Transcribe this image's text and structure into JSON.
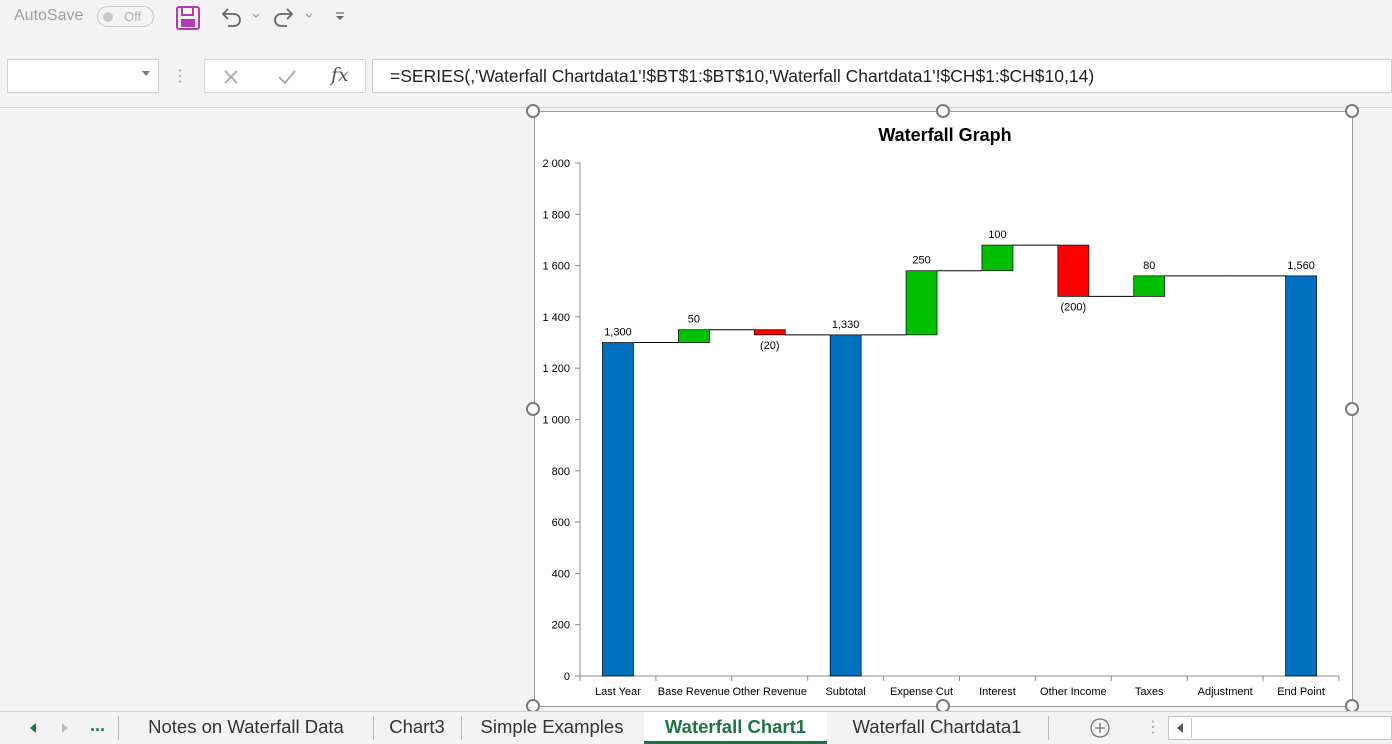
{
  "titlebar": {
    "autosave_label": "AutoSave",
    "autosave_state": "Off",
    "icons": [
      "save-icon",
      "undo-icon",
      "redo-icon",
      "customize-icon"
    ]
  },
  "formula_bar": {
    "name_box_value": "",
    "formula": "=SERIES(,'Waterfall Chartdata1'!$BT$1:$BT$10,'Waterfall Chartdata1'!$CH$1:$CH$10,14)",
    "fx_label": "fx"
  },
  "colors": {
    "total": "#0070c0",
    "increase": "#00c000",
    "decrease": "#ff0000",
    "active_tab": "#217346"
  },
  "chart_data": {
    "type": "bar",
    "title": "Waterfall Graph",
    "categories": [
      "Last Year",
      "Base Revenue",
      "Other Revenue",
      "Subtotal",
      "Expense Cut",
      "Interest",
      "Other Income",
      "Taxes",
      "Adjustment",
      "End Point"
    ],
    "series": [
      {
        "kind": "total",
        "bottom": 0,
        "top": 1300,
        "label": "1,300"
      },
      {
        "kind": "increase",
        "bottom": 1300,
        "top": 1350,
        "label": "50"
      },
      {
        "kind": "decrease",
        "bottom": 1330,
        "top": 1350,
        "label": "(20)"
      },
      {
        "kind": "total",
        "bottom": 0,
        "top": 1330,
        "label": "1,330"
      },
      {
        "kind": "increase",
        "bottom": 1330,
        "top": 1580,
        "label": "250"
      },
      {
        "kind": "increase",
        "bottom": 1580,
        "top": 1680,
        "label": "100"
      },
      {
        "kind": "decrease",
        "bottom": 1480,
        "top": 1680,
        "label": "(200)"
      },
      {
        "kind": "increase",
        "bottom": 1480,
        "top": 1560,
        "label": "80"
      },
      {
        "kind": "none",
        "bottom": 1560,
        "top": 1560,
        "label": ""
      },
      {
        "kind": "total",
        "bottom": 0,
        "top": 1560,
        "label": "1,560"
      }
    ],
    "ylim": [
      0,
      2000
    ],
    "yticks": [
      0,
      200,
      400,
      600,
      800,
      1000,
      1200,
      1400,
      1600,
      1800,
      2000
    ],
    "ytick_labels": [
      "0",
      "200",
      "400",
      "600",
      "800",
      "1 000",
      "1 200",
      "1 400",
      "1 600",
      "1 800",
      "2 000"
    ],
    "grid": false,
    "legend": "none",
    "connectors": true
  },
  "tabs": {
    "nav_more": "...",
    "items": [
      {
        "label": "Notes on Waterfall Data",
        "active": false
      },
      {
        "label": "Chart3",
        "active": false
      },
      {
        "label": "Simple Examples",
        "active": false
      },
      {
        "label": "Waterfall Chart1",
        "active": true
      },
      {
        "label": "Waterfall Chartdata1",
        "active": false
      }
    ]
  }
}
